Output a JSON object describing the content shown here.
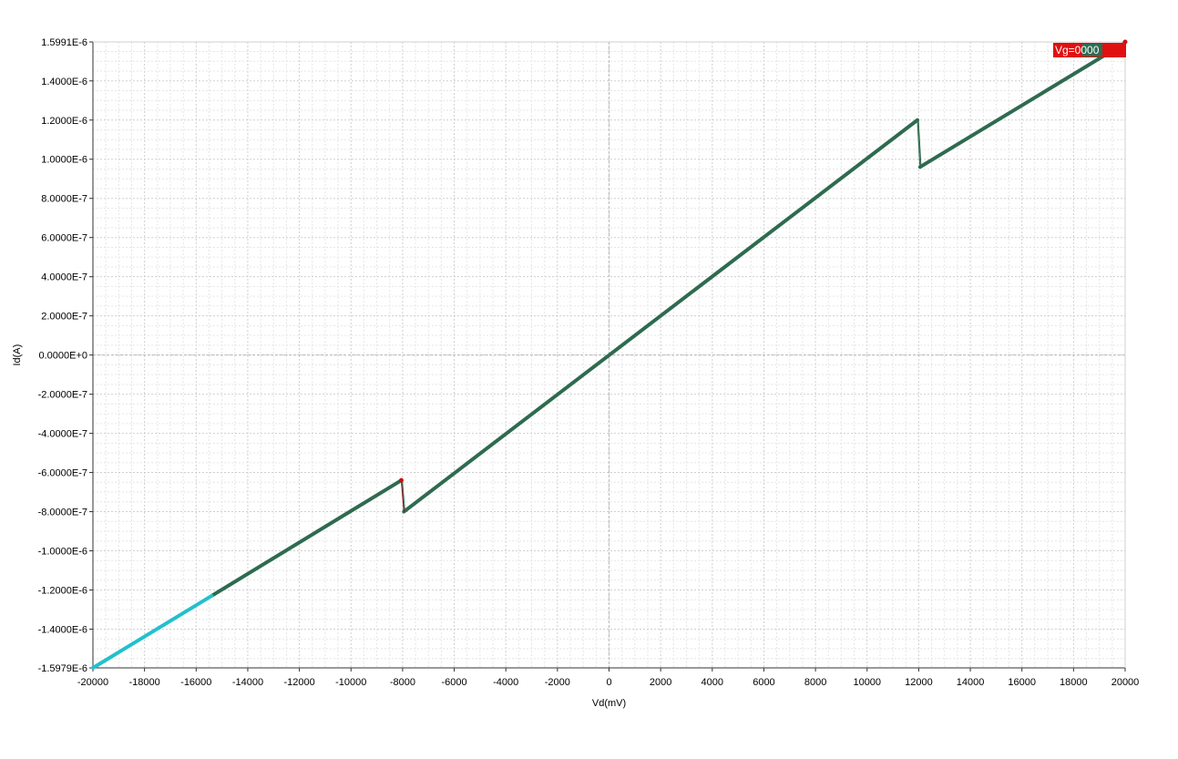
{
  "chart_data": {
    "type": "line",
    "xlabel": "Vd(mV)",
    "ylabel": "Id(A)",
    "xlim": [
      -20000,
      20000
    ],
    "ylim": [
      -1.5979e-06,
      1.5991e-06
    ],
    "x_ticks": [
      -20000,
      -18000,
      -16000,
      -14000,
      -12000,
      -10000,
      -8000,
      -6000,
      -4000,
      -2000,
      0,
      2000,
      4000,
      6000,
      8000,
      10000,
      12000,
      14000,
      16000,
      18000,
      20000
    ],
    "x_tick_labels": [
      "-20000",
      "-18000",
      "-16000",
      "-14000",
      "-12000",
      "-10000",
      "-8000",
      "-6000",
      "-4000",
      "-2000",
      "0",
      "2000",
      "4000",
      "6000",
      "8000",
      "10000",
      "12000",
      "14000",
      "16000",
      "18000",
      "20000"
    ],
    "y_ticks": [
      1.5991e-06,
      1.4e-06,
      1.2e-06,
      1e-06,
      8e-07,
      6e-07,
      4e-07,
      2e-07,
      0,
      -2e-07,
      -4e-07,
      -6e-07,
      -8e-07,
      -1e-06,
      -1.2e-06,
      -1.4e-06,
      -1.5979e-06
    ],
    "y_tick_labels": [
      "1.5991E-6",
      "1.4000E-6",
      "1.2000E-6",
      "1.0000E-6",
      "8.0000E-7",
      "6.0000E-7",
      "4.0000E-7",
      "2.0000E-7",
      "0.0000E+0",
      "-2.0000E-7",
      "-4.0000E-7",
      "-6.0000E-7",
      "-8.0000E-7",
      "-1.0000E-6",
      "-1.2000E-6",
      "-1.4000E-6",
      "-1.5979E-6"
    ],
    "grid": true,
    "legend": {
      "position": "top-right",
      "label": "Vg=0000"
    },
    "series": [
      {
        "name": "Vg=0000",
        "color": "#2e6b50",
        "segments": [
          {
            "x": [
              -15400,
              -8050
            ],
            "y": [
              -1.23e-06,
              -6.4e-07
            ]
          },
          {
            "x": [
              -7950,
              11950
            ],
            "y": [
              -8e-07,
              1.2e-06
            ]
          },
          {
            "x": [
              12050,
              19950
            ],
            "y": [
              9.6e-07,
              1.59e-06
            ]
          }
        ],
        "jumps": [
          {
            "x": [
              -8050,
              -7950
            ],
            "y": [
              -6.4e-07,
              -8e-07
            ],
            "color": "#8b1a1a"
          },
          {
            "x": [
              11950,
              12050
            ],
            "y": [
              1.2e-06,
              9.6e-07
            ],
            "color": "#2e6b50"
          }
        ]
      },
      {
        "color": "#22c0cc",
        "segments": [
          {
            "x": [
              -20000,
              -15400
            ],
            "y": [
              -1.5979e-06,
              -1.23e-06
            ]
          }
        ]
      }
    ],
    "markers": [
      {
        "x": -8050,
        "y": -6.4e-07,
        "color": "#cc1111"
      },
      {
        "x": 20000,
        "y": 1.5991e-06,
        "color": "#cc1111"
      }
    ]
  }
}
